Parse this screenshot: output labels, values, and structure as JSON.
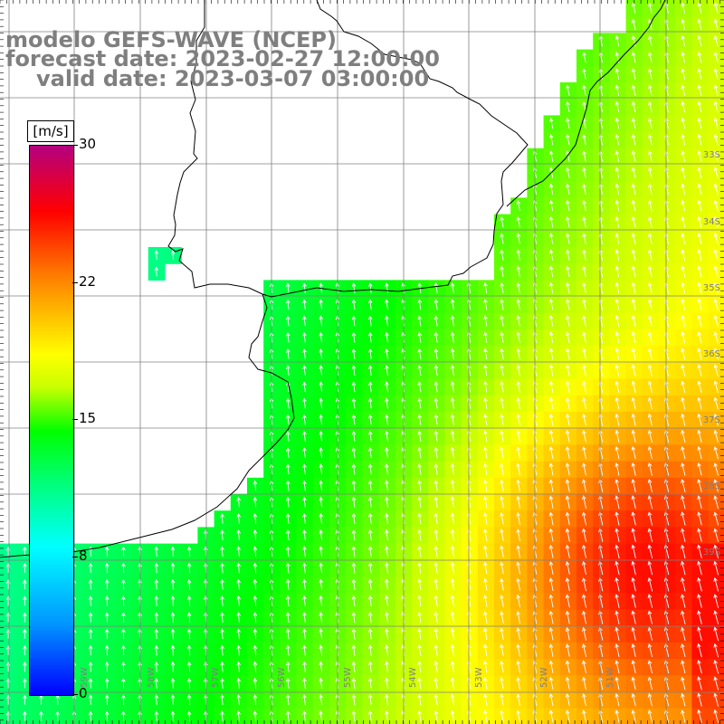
{
  "title": {
    "line1": "modelo GEFS-WAVE (NCEP)",
    "line2": "forecast date: 2023-02-27 12:00:00",
    "line3": "valid date: 2023-03-07 03:00:00"
  },
  "colorbar": {
    "units": "[m/s]",
    "ticks": [
      "30",
      "22",
      "15",
      "8",
      "0"
    ],
    "tick_values": [
      30,
      22,
      15,
      8,
      0
    ],
    "min": 0,
    "max": 30,
    "colors": [
      "#0000ff",
      "#00c8ff",
      "#00ffff",
      "#00ff00",
      "#ffff00",
      "#ff8000",
      "#ff0000",
      "#b4007f"
    ]
  },
  "map": {
    "region": "South America Atlantic coast (Uruguay / Rio de la Plata / Buenos Aires)",
    "lat_labels": [
      "33S",
      "34S",
      "35S",
      "36S",
      "37S",
      "38S",
      "39S"
    ],
    "lon_labels": [
      "59W",
      "58W",
      "57W",
      "56W",
      "55W",
      "54W",
      "53W",
      "52W",
      "51W"
    ],
    "grid_color": "#808080",
    "coast_color": "#000000",
    "arrow_color": "#ffffff"
  }
}
